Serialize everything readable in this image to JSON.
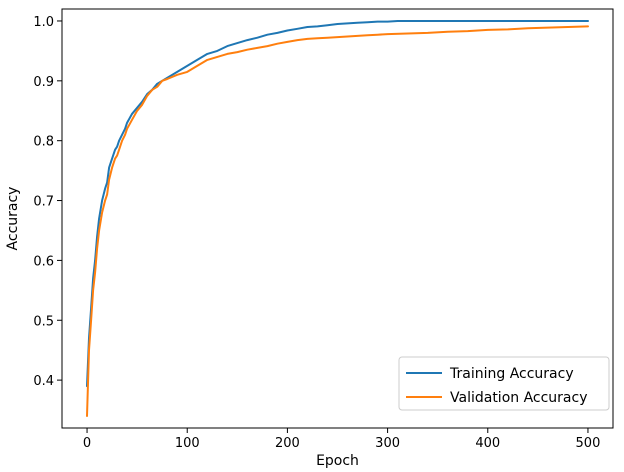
{
  "chart_data": {
    "type": "line",
    "title": "",
    "xlabel": "Epoch",
    "ylabel": "Accuracy",
    "xlim": [
      -25,
      525
    ],
    "ylim": [
      0.32,
      1.02
    ],
    "xticks": [
      0,
      100,
      200,
      300,
      400,
      500
    ],
    "yticks": [
      0.4,
      0.5,
      0.6,
      0.7,
      0.8,
      0.9,
      1.0
    ],
    "ytick_labels": [
      "0.4",
      "0.5",
      "0.6",
      "0.7",
      "0.8",
      "0.9",
      "1.0"
    ],
    "grid": false,
    "legend": {
      "placement": "lower-right"
    },
    "series": [
      {
        "name": "Training Accuracy",
        "color": "#1f77b4",
        "x": [
          0,
          2,
          4,
          6,
          8,
          10,
          12,
          15,
          18,
          20,
          22,
          25,
          28,
          30,
          32,
          35,
          38,
          40,
          45,
          50,
          55,
          60,
          65,
          70,
          75,
          80,
          90,
          100,
          110,
          120,
          130,
          140,
          150,
          160,
          170,
          180,
          190,
          200,
          210,
          220,
          230,
          240,
          250,
          260,
          270,
          280,
          290,
          300,
          310,
          320,
          330,
          340,
          350,
          375,
          400,
          425,
          450,
          475,
          500
        ],
        "y": [
          0.39,
          0.47,
          0.52,
          0.57,
          0.6,
          0.64,
          0.67,
          0.7,
          0.72,
          0.73,
          0.755,
          0.77,
          0.785,
          0.79,
          0.8,
          0.81,
          0.82,
          0.83,
          0.845,
          0.855,
          0.865,
          0.878,
          0.885,
          0.895,
          0.9,
          0.905,
          0.915,
          0.925,
          0.935,
          0.945,
          0.95,
          0.958,
          0.963,
          0.968,
          0.972,
          0.977,
          0.98,
          0.984,
          0.987,
          0.99,
          0.991,
          0.993,
          0.995,
          0.996,
          0.997,
          0.998,
          0.999,
          0.999,
          1.0,
          1.0,
          1.0,
          1.0,
          1.0,
          1.0,
          1.0,
          1.0,
          1.0,
          1.0,
          1.0
        ]
      },
      {
        "name": "Validation Accuracy",
        "color": "#ff7f0e",
        "x": [
          0,
          2,
          4,
          6,
          8,
          10,
          12,
          15,
          18,
          20,
          22,
          25,
          28,
          30,
          32,
          35,
          38,
          40,
          45,
          50,
          55,
          60,
          65,
          70,
          75,
          80,
          90,
          100,
          110,
          120,
          130,
          140,
          150,
          160,
          170,
          180,
          190,
          200,
          210,
          220,
          230,
          240,
          250,
          260,
          270,
          280,
          290,
          300,
          320,
          340,
          360,
          380,
          400,
          420,
          440,
          460,
          480,
          500
        ],
        "y": [
          0.34,
          0.45,
          0.5,
          0.55,
          0.58,
          0.62,
          0.65,
          0.68,
          0.7,
          0.71,
          0.735,
          0.755,
          0.77,
          0.775,
          0.785,
          0.8,
          0.81,
          0.82,
          0.835,
          0.85,
          0.86,
          0.875,
          0.885,
          0.89,
          0.9,
          0.903,
          0.91,
          0.915,
          0.925,
          0.935,
          0.94,
          0.945,
          0.948,
          0.952,
          0.955,
          0.958,
          0.962,
          0.965,
          0.968,
          0.97,
          0.971,
          0.972,
          0.973,
          0.974,
          0.975,
          0.976,
          0.977,
          0.978,
          0.979,
          0.98,
          0.982,
          0.983,
          0.985,
          0.986,
          0.988,
          0.989,
          0.99,
          0.991
        ]
      }
    ]
  }
}
